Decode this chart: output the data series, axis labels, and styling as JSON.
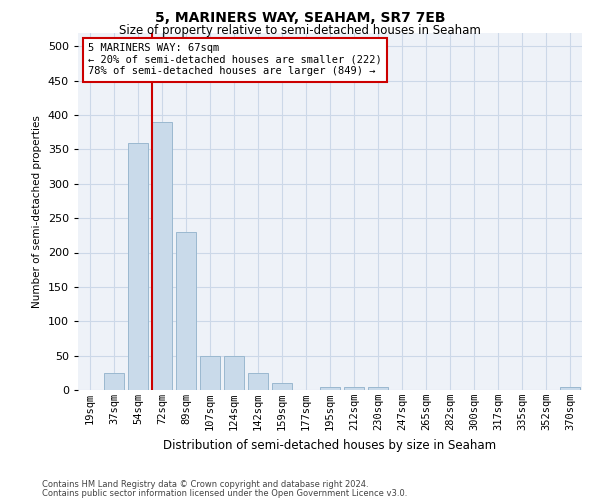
{
  "title": "5, MARINERS WAY, SEAHAM, SR7 7EB",
  "subtitle": "Size of property relative to semi-detached houses in Seaham",
  "xlabel": "Distribution of semi-detached houses by size in Seaham",
  "ylabel": "Number of semi-detached properties",
  "property_label": "5 MARINERS WAY: 67sqm",
  "smaller_pct": 20,
  "smaller_count": 222,
  "larger_pct": 78,
  "larger_count": 849,
  "bin_labels": [
    "19sqm",
    "37sqm",
    "54sqm",
    "72sqm",
    "89sqm",
    "107sqm",
    "124sqm",
    "142sqm",
    "159sqm",
    "177sqm",
    "195sqm",
    "212sqm",
    "230sqm",
    "247sqm",
    "265sqm",
    "282sqm",
    "300sqm",
    "317sqm",
    "335sqm",
    "352sqm",
    "370sqm"
  ],
  "bar_heights": [
    0,
    25,
    360,
    390,
    230,
    50,
    50,
    25,
    10,
    0,
    5,
    5,
    5,
    0,
    0,
    0,
    0,
    0,
    0,
    0,
    5
  ],
  "bar_color": "#c9daea",
  "bar_edge_color": "#9ab8d0",
  "vline_color": "#cc0000",
  "vline_bin": 3,
  "ylim": [
    0,
    520
  ],
  "yticks": [
    0,
    50,
    100,
    150,
    200,
    250,
    300,
    350,
    400,
    450,
    500
  ],
  "grid_color": "#ccd8e8",
  "annotation_box_color": "#cc0000",
  "footnote1": "Contains HM Land Registry data © Crown copyright and database right 2024.",
  "footnote2": "Contains public sector information licensed under the Open Government Licence v3.0."
}
